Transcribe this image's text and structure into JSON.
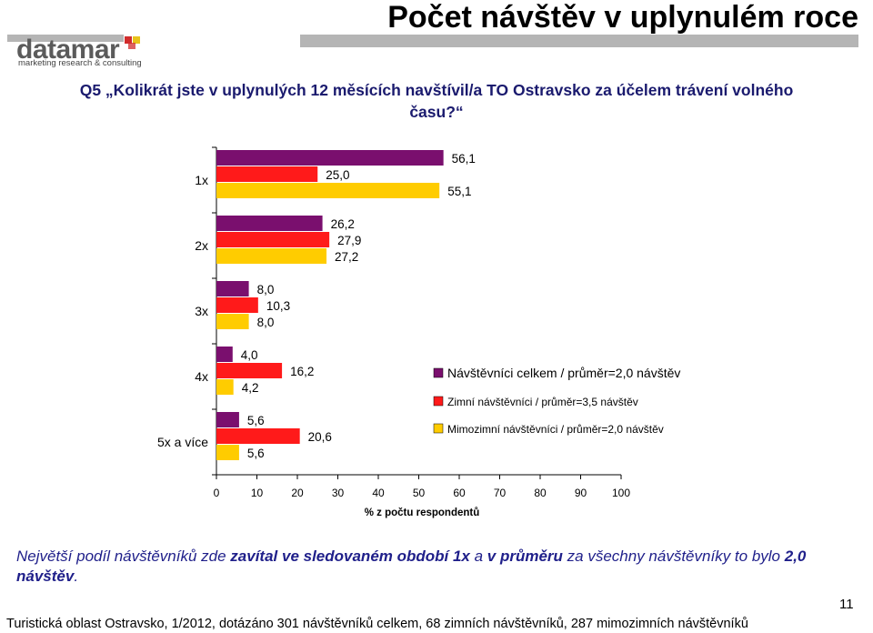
{
  "slide": {
    "title": "Počet návštěv v uplynulém roce",
    "logo_text": "datamar",
    "logo_tagline": "marketing research & consulting",
    "question": "Q5 „Kolikrát jste v uplynulých 12 měsících navštívil/a TO Ostravsko za účelem trávení volného času?“",
    "conclusion_parts": [
      {
        "text": "Největší podíl návštěvníků zde ",
        "bold": false
      },
      {
        "text": "zavítal ve sledovaném období 1x",
        "bold": true
      },
      {
        "text": " a ",
        "bold": false
      },
      {
        "text": "v průměru",
        "bold": true
      },
      {
        "text": " za všechny návštěvníky to bylo ",
        "bold": false
      },
      {
        "text": "2,0 návštěv",
        "bold": true
      },
      {
        "text": ".",
        "bold": false
      }
    ],
    "page_number": "11",
    "footer": "Turistická oblast Ostravsko, 1/2012, dotázáno 301 návštěvníků celkem, 68 zimních návštěvníků, 287 mimozimních návštěvníků"
  },
  "chart_data": {
    "type": "bar",
    "orientation": "horizontal",
    "categories": [
      "1x",
      "2x",
      "3x",
      "4x",
      "5x a více"
    ],
    "series": [
      {
        "name": "Návštěvníci celkem / průměr=2,0 návštěv",
        "color": "#7a0f6e",
        "values": [
          56.1,
          26.2,
          8.0,
          4.0,
          5.6
        ],
        "labels": [
          "56,1",
          "26,2",
          "8,0",
          "4,0",
          "5,6"
        ]
      },
      {
        "name": "Zimní návštěvníci / průměr=3,5 návštěv",
        "color": "#ff1a1a",
        "values": [
          25.0,
          27.9,
          10.3,
          16.2,
          20.6
        ],
        "labels": [
          "25,0",
          "27,9",
          "10,3",
          "16,2",
          "20,6"
        ]
      },
      {
        "name": "Mimozimní návštěvníci / průměr=2,0 návštěv",
        "color": "#ffcc00",
        "values": [
          55.1,
          27.2,
          8.0,
          4.2,
          5.6
        ],
        "labels": [
          "55,1",
          "27,2",
          "8,0",
          "4,2",
          "5,6"
        ]
      }
    ],
    "xlim": [
      0,
      100
    ],
    "xticks": [
      "0",
      "10",
      "20",
      "30",
      "40",
      "50",
      "60",
      "70",
      "80",
      "90",
      "100"
    ],
    "xlabel": "% z počtu respondentů",
    "legend_position": "right"
  }
}
